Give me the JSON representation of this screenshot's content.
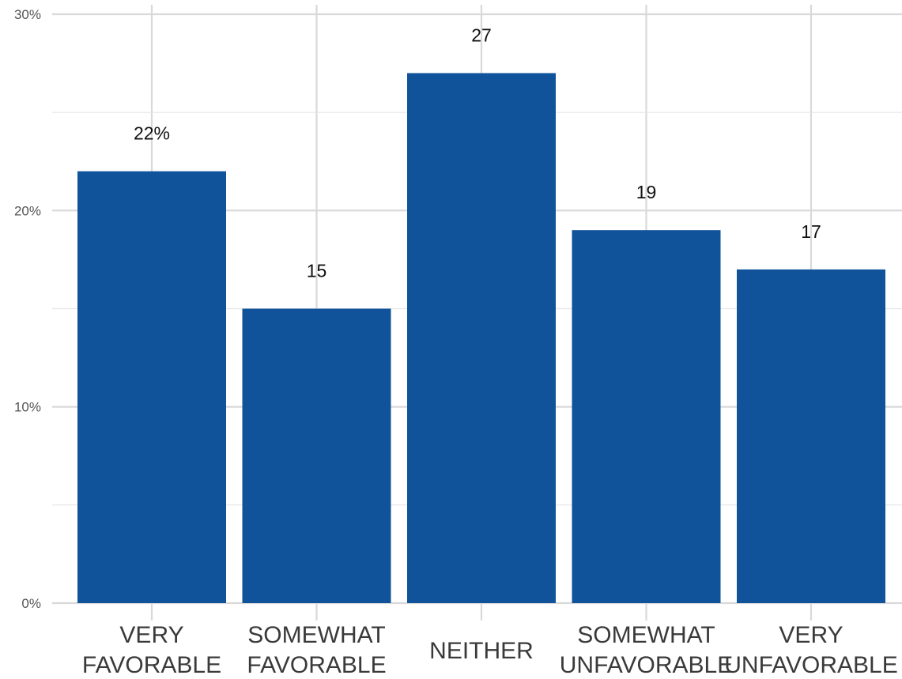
{
  "chart_data": {
    "type": "bar",
    "categories": [
      [
        "VERY",
        "FAVORABLE"
      ],
      [
        "SOMEWHAT",
        "FAVORABLE"
      ],
      [
        "NEITHER"
      ],
      [
        "SOMEWHAT",
        "UNFAVORABLE"
      ],
      [
        "VERY",
        "UNFAVORABLE"
      ]
    ],
    "values": [
      22,
      15,
      27,
      19,
      17
    ],
    "data_labels": [
      "22%",
      "15",
      "27",
      "19",
      "17"
    ],
    "ylim": [
      0,
      30
    ],
    "yticks": [
      0,
      10,
      20,
      30
    ],
    "ytick_labels": [
      "0%",
      "10%",
      "20%",
      "30%"
    ],
    "minor_yticks": [
      5,
      15,
      25
    ],
    "grid": true,
    "bar_color": "#11539a",
    "grid_color": "#d9d9d9",
    "title": "",
    "xlabel": "",
    "ylabel": ""
  }
}
